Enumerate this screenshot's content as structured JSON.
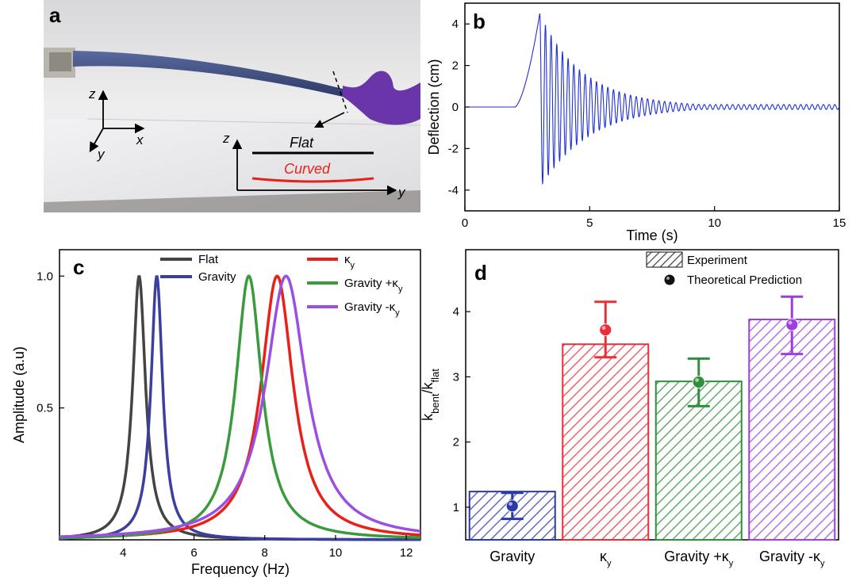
{
  "panel_a": {
    "label": "a",
    "axis_z": "z",
    "axis_x": "x",
    "axis_y": "y",
    "inset_axis_z": "z",
    "inset_axis_y": "y",
    "flat_label": "Flat",
    "curved_label": "Curved",
    "colors": {
      "flat": "#000000",
      "curved": "#e8201a",
      "strip": "#3b4b7e",
      "glove": "#6a35a8"
    }
  },
  "chart_data": [
    {
      "panel": "b",
      "type": "line",
      "label": "b",
      "xlabel": "Time (s)",
      "ylabel": "Deflection (cm)",
      "xlim": [
        0,
        15
      ],
      "ylim": [
        -5,
        5
      ],
      "xticks": [
        "0",
        "5",
        "10",
        "15"
      ],
      "yticks": [
        "4",
        "2",
        "0",
        "-2",
        "-4"
      ],
      "color": "#1f2fd6",
      "signal": {
        "flat_until": 2.0,
        "rise_start": 2.0,
        "peak_time": 3.0,
        "peak_value": 4.5,
        "first_trough_time": 3.2,
        "first_trough_value": -3.9,
        "frequency_hz": 4.4,
        "decay_rate": 0.55,
        "end_amplitude": 0.12,
        "end_time": 15
      }
    },
    {
      "panel": "c",
      "type": "line",
      "label": "c",
      "xlabel": "Frequency (Hz)",
      "ylabel": "Amplitude (a.u)",
      "xlim": [
        2.2,
        12.4
      ],
      "ylim": [
        0,
        1.1
      ],
      "xticks": [
        "4",
        "6",
        "8",
        "10",
        "12"
      ],
      "yticks": [
        "1.0",
        "0.5"
      ],
      "series": [
        {
          "name": "Flat",
          "peak": 4.45,
          "width": 0.22,
          "color": "#444444"
        },
        {
          "name": "Gravity",
          "peak": 4.95,
          "width": 0.2,
          "color": "#3b3fa0"
        },
        {
          "name": "κy",
          "peak": 8.35,
          "width": 0.55,
          "color": "#e8201a"
        },
        {
          "name": "Gravity +κy",
          "peak": 7.55,
          "width": 0.45,
          "color": "#3a9a3c"
        },
        {
          "name": "Gravity -κy",
          "peak": 8.6,
          "width": 0.7,
          "color": "#9b4fe0"
        }
      ],
      "legend_left": [
        {
          "name": "Flat",
          "color": "#444444"
        },
        {
          "name": "Gravity",
          "color": "#3b3fa0"
        }
      ],
      "legend_right": [
        {
          "name": "κy",
          "color": "#e8201a"
        },
        {
          "name": "Gravity +κy",
          "color": "#3a9a3c"
        },
        {
          "name": "Gravity -κy",
          "color": "#9b4fe0"
        }
      ]
    },
    {
      "panel": "d",
      "type": "bar",
      "label": "d",
      "ylabel": "kbent/kflat",
      "ylim": [
        0.5,
        4.95
      ],
      "yticks": [
        "1",
        "2",
        "3",
        "4"
      ],
      "categories": [
        "Gravity",
        "κy",
        "Gravity +κy",
        "Gravity -κy"
      ],
      "experiment": [
        1.24,
        3.5,
        2.93,
        3.88
      ],
      "theory": [
        1.02,
        3.72,
        2.92,
        3.8
      ],
      "error_low": [
        0.82,
        3.3,
        2.55,
        3.35
      ],
      "error_high": [
        1.22,
        4.15,
        3.28,
        4.23
      ],
      "colors": [
        "#2b3aa8",
        "#e8303a",
        "#2f8f3a",
        "#9b3fe0"
      ],
      "legend": {
        "experiment": "Experiment",
        "theory": "Theoretical Prediction"
      }
    }
  ]
}
